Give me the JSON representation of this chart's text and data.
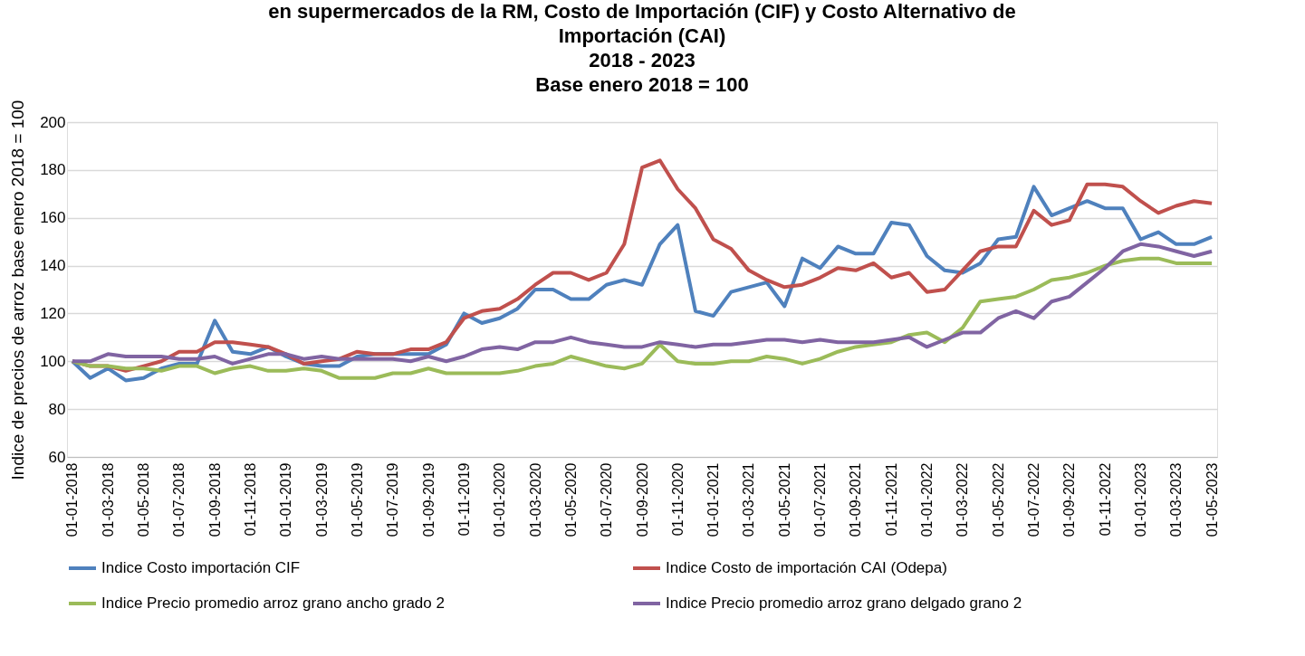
{
  "chart_data": {
    "type": "line",
    "title": "en supermercados de la RM, Costo de Importación (CIF) y Costo Alternativo de\nImportación (CAI)\n2018 - 2023\nBase enero 2018 = 100",
    "ylabel": "Indice de precios de arroz base enero 2018 = 100",
    "categories": [
      "01-01-2018",
      null,
      "01-03-2018",
      null,
      "01-05-2018",
      null,
      "01-07-2018",
      null,
      "01-09-2018",
      null,
      "01-11-2018",
      null,
      "01-01-2019",
      null,
      "01-03-2019",
      null,
      "01-05-2019",
      null,
      "01-07-2019",
      null,
      "01-09-2019",
      null,
      "01-11-2019",
      null,
      "01-01-2020",
      null,
      "01-03-2020",
      null,
      "01-05-2020",
      null,
      "01-07-2020",
      null,
      "01-09-2020",
      null,
      "01-11-2020",
      null,
      "01-01-2021",
      null,
      "01-03-2021",
      null,
      "01-05-2021",
      null,
      "01-07-2021",
      null,
      "01-09-2021",
      null,
      "01-11-2021",
      null,
      "01-01-2022",
      null,
      "01-03-2022",
      null,
      "01-05-2022",
      null,
      "01-07-2022",
      null,
      "01-09-2022",
      null,
      "01-11-2022",
      null,
      "01-01-2023",
      null,
      "01-03-2023",
      null,
      "01-05-2023"
    ],
    "series": [
      {
        "name": "Indice  Costo importación CIF",
        "color": "#4f81bd",
        "values": [
          100,
          93,
          97,
          92,
          93,
          97,
          99,
          99,
          117,
          104,
          103,
          106,
          102,
          99,
          98,
          98,
          102,
          103,
          103,
          103,
          103,
          107,
          120,
          116,
          118,
          122,
          130,
          130,
          126,
          126,
          132,
          134,
          132,
          149,
          157,
          121,
          119,
          129,
          131,
          133,
          123,
          143,
          139,
          148,
          145,
          145,
          158,
          157,
          144,
          138,
          137,
          141,
          151,
          152,
          173,
          161,
          164,
          167,
          164,
          164,
          151,
          154,
          149,
          149,
          152
        ]
      },
      {
        "name": "Indice Costo de importación CAI (Odepa)",
        "color": "#c0504d",
        "values": [
          100,
          98,
          98,
          96,
          98,
          100,
          104,
          104,
          108,
          108,
          107,
          106,
          103,
          99,
          100,
          101,
          104,
          103,
          103,
          105,
          105,
          108,
          118,
          121,
          122,
          126,
          132,
          137,
          137,
          134,
          137,
          149,
          181,
          184,
          172,
          164,
          151,
          147,
          138,
          134,
          131,
          132,
          135,
          139,
          138,
          141,
          135,
          137,
          129,
          130,
          138,
          146,
          148,
          148,
          163,
          157,
          159,
          174,
          174,
          173,
          167,
          162,
          165,
          167,
          166
        ]
      },
      {
        "name": "Indice Precio promedio arroz grano ancho grado 2",
        "color": "#9bbb59",
        "values": [
          100,
          98,
          98,
          97,
          97,
          96,
          98,
          98,
          95,
          97,
          98,
          96,
          96,
          97,
          96,
          93,
          93,
          93,
          95,
          95,
          97,
          95,
          95,
          95,
          95,
          96,
          98,
          99,
          102,
          100,
          98,
          97,
          99,
          107,
          100,
          99,
          99,
          100,
          100,
          102,
          101,
          99,
          101,
          104,
          106,
          107,
          108,
          111,
          112,
          108,
          114,
          125,
          126,
          127,
          130,
          134,
          135,
          137,
          140,
          142,
          143,
          143,
          141,
          141,
          141
        ]
      },
      {
        "name": "Indice Precio promedio arroz grano delgado grano 2",
        "color": "#8064a2",
        "values": [
          100,
          100,
          103,
          102,
          102,
          102,
          101,
          101,
          102,
          99,
          101,
          103,
          103,
          101,
          102,
          101,
          101,
          101,
          101,
          100,
          102,
          100,
          102,
          105,
          106,
          105,
          108,
          108,
          110,
          108,
          107,
          106,
          106,
          108,
          107,
          106,
          107,
          107,
          108,
          109,
          109,
          108,
          109,
          108,
          108,
          108,
          109,
          110,
          106,
          109,
          112,
          112,
          118,
          121,
          118,
          125,
          127,
          133,
          139,
          146,
          149,
          148,
          146,
          144,
          146
        ]
      }
    ],
    "ylim": [
      60,
      200
    ],
    "yticks": [
      60,
      80,
      100,
      120,
      140,
      160,
      180,
      200
    ],
    "grid": "y",
    "legend": "bottom",
    "marker": "none",
    "line_style": "solid"
  }
}
